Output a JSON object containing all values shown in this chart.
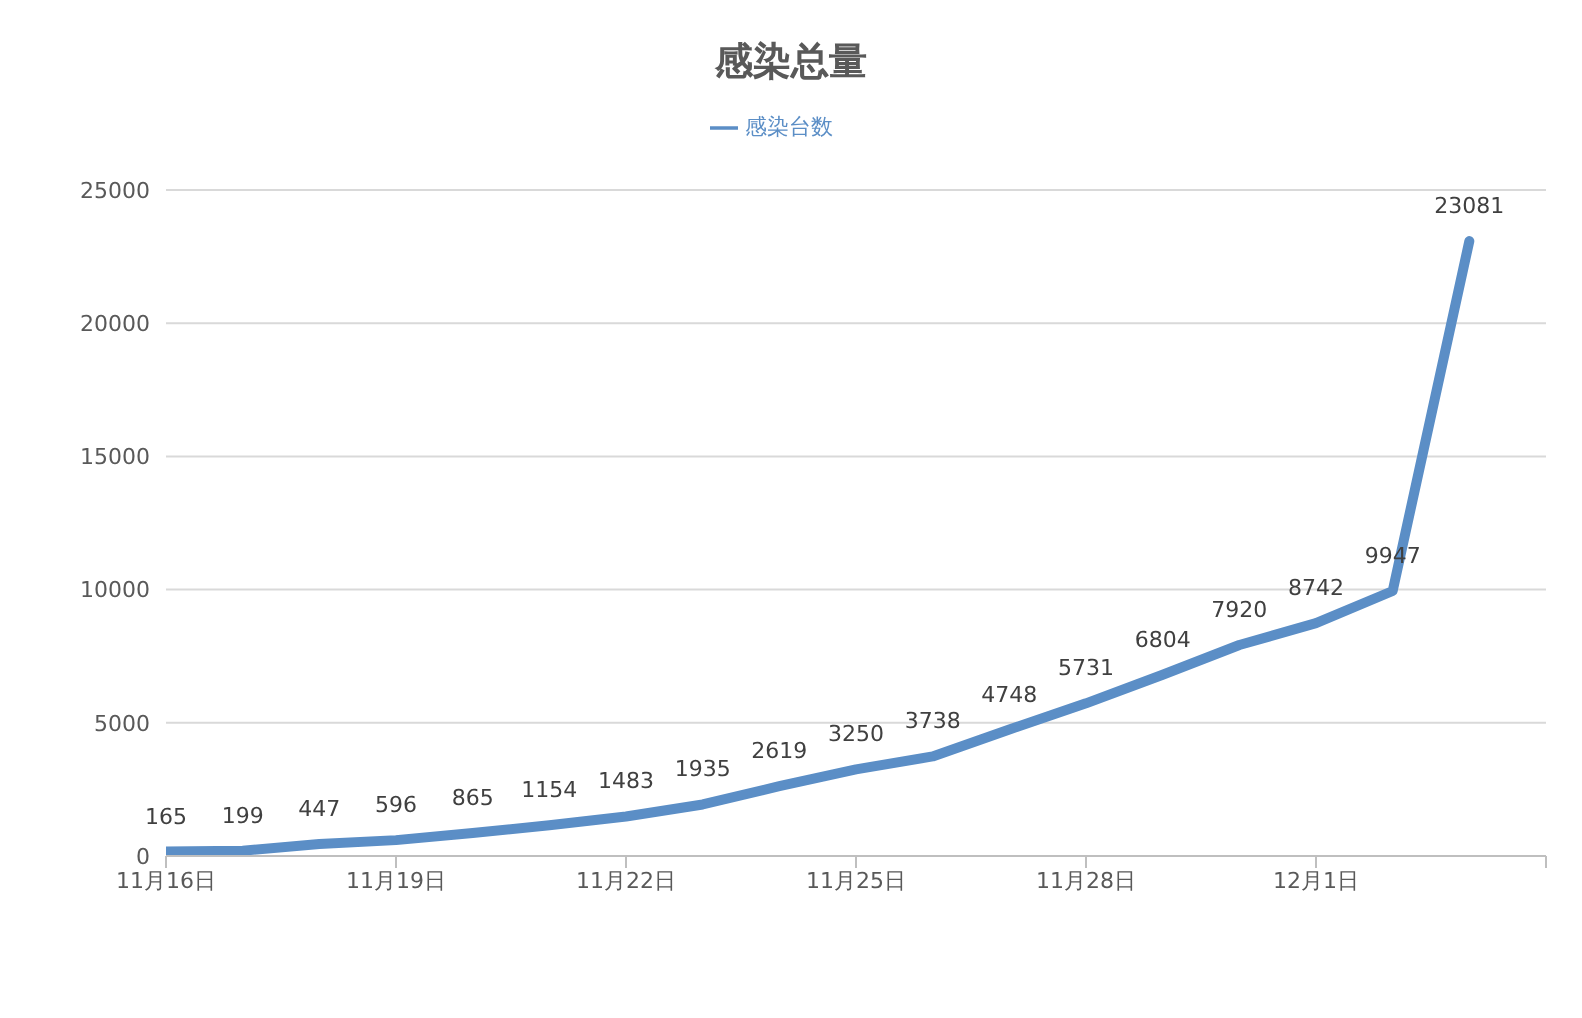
{
  "chart_data": {
    "type": "line",
    "title": "感染总量",
    "x": [
      "--11-16",
      "--11-17",
      "--11-18",
      "--11-19",
      "--11-20",
      "--11-21",
      "--11-22",
      "--11-23",
      "--11-24",
      "--11-25",
      "--11-26",
      "--11-27",
      "--11-28",
      "--11-29",
      "--11-30",
      "--12-01",
      "--12-02",
      "--12-03"
    ],
    "series": [
      {
        "name": "感染台数",
        "color": "#5b8ec6",
        "values": [
          165,
          199,
          447,
          596,
          865,
          1154,
          1483,
          1935,
          2619,
          3250,
          3738,
          4748,
          5731,
          6804,
          7920,
          8742,
          9947,
          23081
        ]
      }
    ],
    "xlim": [
      "--11-16",
      "--12-04"
    ],
    "xticks": [
      {
        "value": "--11-16",
        "label": "11月16日"
      },
      {
        "value": "--11-19",
        "label": "11月19日"
      },
      {
        "value": "--11-22",
        "label": "11月22日"
      },
      {
        "value": "--11-25",
        "label": "11月25日"
      },
      {
        "value": "--11-28",
        "label": "11月28日"
      },
      {
        "value": "--12-01",
        "label": "12月1日"
      },
      {
        "value": "--12-04",
        "label": null
      }
    ],
    "ylim": [
      0,
      25000
    ],
    "yticks": [
      0,
      5000,
      10000,
      15000,
      20000,
      25000
    ],
    "grid": "y",
    "legend": "top",
    "marker": "none",
    "line_style": "solid",
    "data_labels": true
  }
}
